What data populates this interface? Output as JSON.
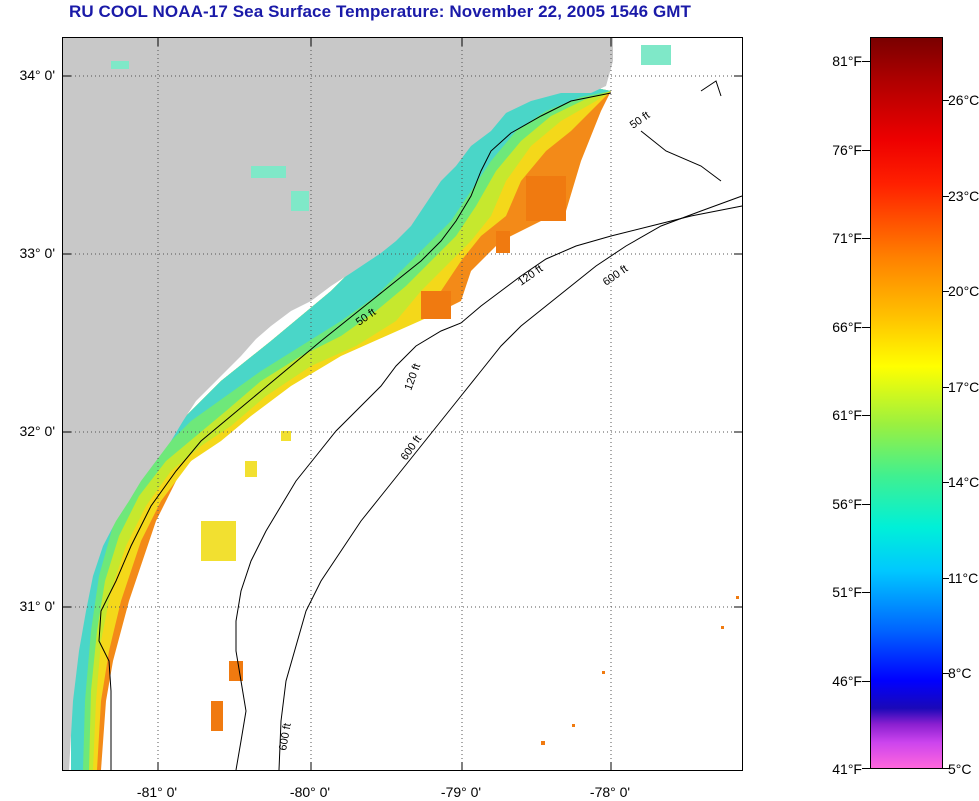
{
  "title": "RU COOL  NOAA-17  Sea Surface Temperature:  November 22, 2005 1546 GMT",
  "colors": {
    "title": "#1a1aa8",
    "land": "#c8c8c8",
    "ocean_nodata": "#ffffff",
    "grid": "#555555",
    "contour": "#000000"
  },
  "map": {
    "lat_labels": [
      "34° 0'",
      "33° 0'",
      "32° 0'",
      "31° 0'"
    ],
    "lon_labels": [
      "-81° 0'",
      "-80° 0'",
      "-79° 0'",
      "-78° 0'"
    ],
    "contour_labels": [
      "50 ft",
      "120 ft",
      "600 ft"
    ]
  },
  "colorbar": {
    "fahrenheit": [
      "81°F",
      "76°F",
      "71°F",
      "66°F",
      "61°F",
      "56°F",
      "51°F",
      "46°F",
      "41°F"
    ],
    "celsius": [
      "26°C",
      "23°C",
      "20°C",
      "17°C",
      "14°C",
      "11°C",
      "8°C",
      "5°C"
    ],
    "range_f": [
      41,
      84
    ],
    "range_c": [
      5,
      29
    ]
  }
}
